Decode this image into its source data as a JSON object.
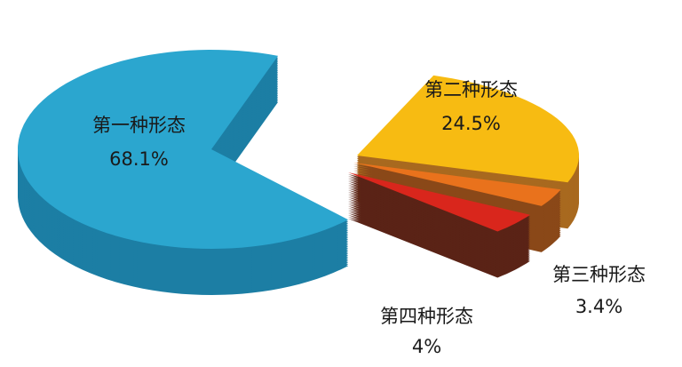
{
  "chart_data": {
    "type": "pie",
    "style": "3d-exploded",
    "slices": [
      {
        "label": "第一种形态",
        "value": 68.1,
        "value_label": "68.1%",
        "color": "#2ba6cf",
        "side_color": "#1c7ea4"
      },
      {
        "label": "第二种形态",
        "value": 24.5,
        "value_label": "24.5%",
        "color": "#f7bb12",
        "side_color": "#a8691f"
      },
      {
        "label": "第三种形态",
        "value": 3.4,
        "value_label": "3.4%",
        "color": "#e9721c",
        "side_color": "#8a4818"
      },
      {
        "label": "第四种形态",
        "value": 4,
        "value_label": "4%",
        "color": "#d9261c",
        "side_color": "#5a2316"
      }
    ],
    "legend": "none"
  }
}
